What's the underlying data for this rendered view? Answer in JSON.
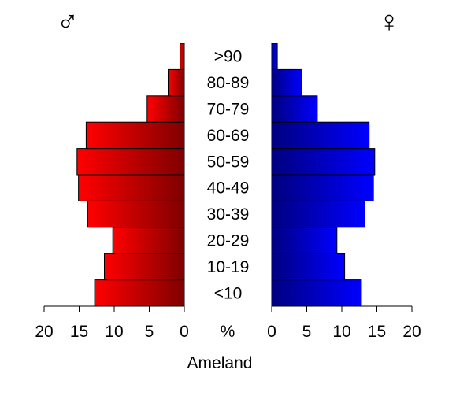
{
  "chart_data": {
    "type": "bar",
    "orientation": "horizontal-population-pyramid",
    "title": "Ameland",
    "male_symbol": "♂",
    "female_symbol": "♀",
    "center_axis_label": "%",
    "categories": [
      "<10",
      "10-19",
      "20-29",
      "30-39",
      "40-49",
      "50-59",
      "60-69",
      "70-79",
      "80-89",
      ">90"
    ],
    "series": [
      {
        "name": "♂",
        "side": "left",
        "color_light": "#ff0000",
        "color_dark": "#7f0000",
        "values": [
          12.8,
          11.4,
          10.2,
          13.8,
          15.1,
          15.3,
          14.0,
          5.3,
          2.3,
          0.6
        ]
      },
      {
        "name": "♀",
        "side": "right",
        "color_light": "#0000ff",
        "color_dark": "#00007f",
        "values": [
          12.8,
          10.4,
          9.3,
          13.3,
          14.5,
          14.7,
          13.9,
          6.5,
          4.2,
          0.8
        ]
      }
    ],
    "xlim": [
      0,
      20
    ],
    "x_ticks": [
      0,
      5,
      10,
      15,
      20
    ],
    "grid": false
  }
}
